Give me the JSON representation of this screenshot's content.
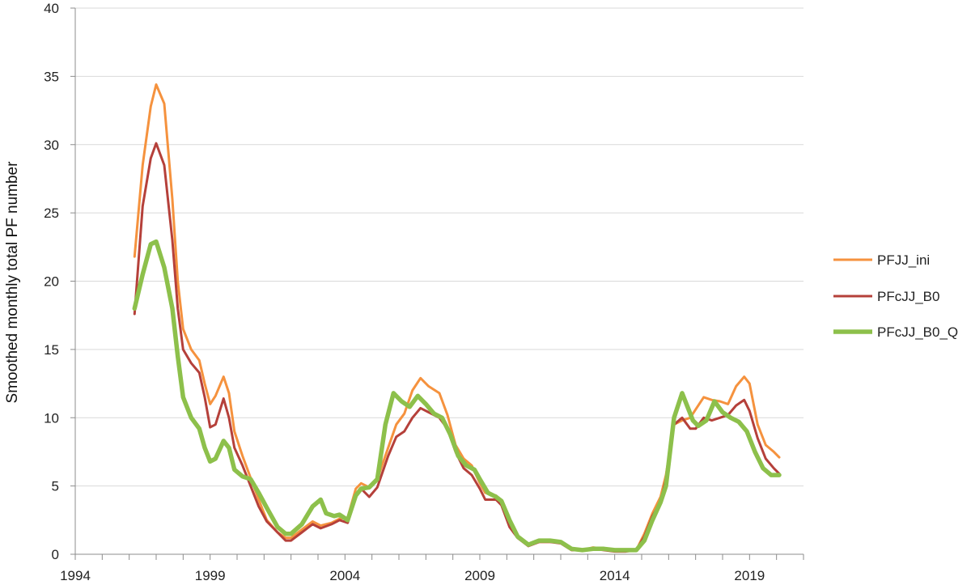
{
  "chart_data": {
    "type": "line",
    "title": "",
    "xlabel": "",
    "ylabel": "Smoothed monthly total PF number",
    "xlim": [
      1994,
      2021
    ],
    "ylim": [
      0,
      40
    ],
    "x_ticks": [
      "1994",
      "1999",
      "2004",
      "2009",
      "2014",
      "2019"
    ],
    "y_ticks": [
      "0",
      "5",
      "10",
      "15",
      "20",
      "25",
      "30",
      "35",
      "40"
    ],
    "grid": "horizontal",
    "legend_position": "right",
    "series": [
      {
        "name": "PFJJ_ini",
        "color": "#F5923E",
        "points": [
          [
            1996.2,
            21.8
          ],
          [
            1996.5,
            28.5
          ],
          [
            1996.8,
            32.8
          ],
          [
            1997.0,
            34.4
          ],
          [
            1997.3,
            33.0
          ],
          [
            1997.6,
            26.0
          ],
          [
            1997.8,
            20.0
          ],
          [
            1998.0,
            16.5
          ],
          [
            1998.3,
            15.0
          ],
          [
            1998.6,
            14.2
          ],
          [
            1998.8,
            12.5
          ],
          [
            1999.0,
            11.0
          ],
          [
            1999.2,
            11.6
          ],
          [
            1999.5,
            13.0
          ],
          [
            1999.7,
            11.8
          ],
          [
            1999.9,
            9.0
          ],
          [
            2000.2,
            7.2
          ],
          [
            2000.5,
            5.6
          ],
          [
            2000.8,
            4.0
          ],
          [
            2001.1,
            2.5
          ],
          [
            2001.5,
            1.6
          ],
          [
            2001.8,
            1.2
          ],
          [
            2002.0,
            1.2
          ],
          [
            2002.4,
            1.8
          ],
          [
            2002.8,
            2.4
          ],
          [
            2003.1,
            2.1
          ],
          [
            2003.5,
            2.3
          ],
          [
            2003.8,
            2.6
          ],
          [
            2004.1,
            2.7
          ],
          [
            2004.4,
            4.8
          ],
          [
            2004.6,
            5.2
          ],
          [
            2004.9,
            4.9
          ],
          [
            2005.2,
            5.5
          ],
          [
            2005.6,
            7.8
          ],
          [
            2005.9,
            9.5
          ],
          [
            2006.2,
            10.3
          ],
          [
            2006.5,
            12.0
          ],
          [
            2006.8,
            12.9
          ],
          [
            2007.1,
            12.3
          ],
          [
            2007.5,
            11.8
          ],
          [
            2007.8,
            10.2
          ],
          [
            2008.1,
            8.0
          ],
          [
            2008.4,
            7.0
          ],
          [
            2008.7,
            6.5
          ],
          [
            2009.0,
            5.2
          ],
          [
            2009.2,
            4.5
          ],
          [
            2009.6,
            4.3
          ],
          [
            2009.8,
            3.8
          ],
          [
            2010.1,
            2.2
          ],
          [
            2010.4,
            1.3
          ],
          [
            2010.8,
            0.7
          ],
          [
            2011.2,
            0.9
          ],
          [
            2011.6,
            0.9
          ],
          [
            2012.0,
            0.9
          ],
          [
            2012.4,
            0.4
          ],
          [
            2012.8,
            0.3
          ],
          [
            2013.2,
            0.5
          ],
          [
            2013.6,
            0.4
          ],
          [
            2014.0,
            0.3
          ],
          [
            2014.4,
            0.3
          ],
          [
            2014.8,
            0.3
          ],
          [
            2015.1,
            1.5
          ],
          [
            2015.4,
            3.0
          ],
          [
            2015.7,
            4.2
          ],
          [
            2015.9,
            5.8
          ],
          [
            2016.2,
            9.5
          ],
          [
            2016.5,
            9.8
          ],
          [
            2016.8,
            10.0
          ],
          [
            2017.0,
            10.6
          ],
          [
            2017.3,
            11.5
          ],
          [
            2017.6,
            11.3
          ],
          [
            2017.9,
            11.2
          ],
          [
            2018.2,
            11.0
          ],
          [
            2018.5,
            12.3
          ],
          [
            2018.8,
            13.0
          ],
          [
            2019.0,
            12.5
          ],
          [
            2019.3,
            9.5
          ],
          [
            2019.6,
            8.0
          ],
          [
            2019.9,
            7.5
          ],
          [
            2020.1,
            7.1
          ]
        ]
      },
      {
        "name": "PFcJJ_B0",
        "color": "#B5403A",
        "points": [
          [
            1996.2,
            17.6
          ],
          [
            1996.5,
            25.5
          ],
          [
            1996.8,
            29.0
          ],
          [
            1997.0,
            30.1
          ],
          [
            1997.3,
            28.5
          ],
          [
            1997.6,
            23.0
          ],
          [
            1997.8,
            18.0
          ],
          [
            1998.0,
            15.0
          ],
          [
            1998.3,
            14.0
          ],
          [
            1998.6,
            13.3
          ],
          [
            1998.8,
            11.5
          ],
          [
            1999.0,
            9.3
          ],
          [
            1999.2,
            9.5
          ],
          [
            1999.5,
            11.4
          ],
          [
            1999.7,
            10.0
          ],
          [
            1999.9,
            7.8
          ],
          [
            2000.2,
            6.5
          ],
          [
            2000.5,
            5.0
          ],
          [
            2000.8,
            3.5
          ],
          [
            2001.1,
            2.4
          ],
          [
            2001.5,
            1.6
          ],
          [
            2001.8,
            1.0
          ],
          [
            2002.0,
            1.0
          ],
          [
            2002.4,
            1.6
          ],
          [
            2002.8,
            2.2
          ],
          [
            2003.1,
            1.9
          ],
          [
            2003.5,
            2.2
          ],
          [
            2003.8,
            2.5
          ],
          [
            2004.1,
            2.3
          ],
          [
            2004.4,
            4.4
          ],
          [
            2004.6,
            4.8
          ],
          [
            2004.9,
            4.2
          ],
          [
            2005.2,
            4.9
          ],
          [
            2005.6,
            7.2
          ],
          [
            2005.9,
            8.6
          ],
          [
            2006.2,
            9.0
          ],
          [
            2006.5,
            10.0
          ],
          [
            2006.8,
            10.7
          ],
          [
            2007.1,
            10.4
          ],
          [
            2007.5,
            10.0
          ],
          [
            2007.8,
            9.2
          ],
          [
            2008.1,
            7.5
          ],
          [
            2008.4,
            6.3
          ],
          [
            2008.7,
            5.8
          ],
          [
            2009.0,
            4.8
          ],
          [
            2009.2,
            4.0
          ],
          [
            2009.6,
            4.0
          ],
          [
            2009.8,
            3.6
          ],
          [
            2010.1,
            2.0
          ],
          [
            2010.4,
            1.2
          ],
          [
            2010.8,
            0.6
          ],
          [
            2011.2,
            0.9
          ],
          [
            2011.6,
            0.9
          ],
          [
            2012.0,
            0.8
          ],
          [
            2012.4,
            0.3
          ],
          [
            2012.8,
            0.3
          ],
          [
            2013.2,
            0.4
          ],
          [
            2013.6,
            0.3
          ],
          [
            2014.0,
            0.2
          ],
          [
            2014.4,
            0.2
          ],
          [
            2014.8,
            0.3
          ],
          [
            2015.1,
            1.3
          ],
          [
            2015.4,
            2.8
          ],
          [
            2015.7,
            3.8
          ],
          [
            2015.9,
            5.5
          ],
          [
            2016.2,
            9.5
          ],
          [
            2016.5,
            10.0
          ],
          [
            2016.8,
            9.2
          ],
          [
            2017.0,
            9.2
          ],
          [
            2017.3,
            10.0
          ],
          [
            2017.6,
            9.8
          ],
          [
            2017.9,
            10.0
          ],
          [
            2018.2,
            10.2
          ],
          [
            2018.5,
            10.9
          ],
          [
            2018.8,
            11.3
          ],
          [
            2019.0,
            10.5
          ],
          [
            2019.3,
            8.5
          ],
          [
            2019.6,
            7.0
          ],
          [
            2019.9,
            6.3
          ],
          [
            2020.1,
            5.9
          ]
        ]
      },
      {
        "name": "PFcJJ_B0_Q",
        "color": "#8DC04B",
        "points": [
          [
            1996.2,
            18.0
          ],
          [
            1996.5,
            20.5
          ],
          [
            1996.8,
            22.7
          ],
          [
            1997.0,
            22.9
          ],
          [
            1997.3,
            21.0
          ],
          [
            1997.6,
            18.0
          ],
          [
            1997.8,
            14.5
          ],
          [
            1998.0,
            11.5
          ],
          [
            1998.3,
            10.0
          ],
          [
            1998.6,
            9.2
          ],
          [
            1998.8,
            7.8
          ],
          [
            1999.0,
            6.8
          ],
          [
            1999.2,
            7.0
          ],
          [
            1999.5,
            8.3
          ],
          [
            1999.7,
            7.8
          ],
          [
            1999.9,
            6.2
          ],
          [
            2000.2,
            5.7
          ],
          [
            2000.5,
            5.5
          ],
          [
            2000.8,
            4.5
          ],
          [
            2001.1,
            3.4
          ],
          [
            2001.5,
            2.0
          ],
          [
            2001.8,
            1.5
          ],
          [
            2002.0,
            1.5
          ],
          [
            2002.4,
            2.2
          ],
          [
            2002.8,
            3.5
          ],
          [
            2003.1,
            4.0
          ],
          [
            2003.3,
            3.0
          ],
          [
            2003.6,
            2.8
          ],
          [
            2003.8,
            2.9
          ],
          [
            2004.1,
            2.5
          ],
          [
            2004.4,
            4.3
          ],
          [
            2004.6,
            4.8
          ],
          [
            2004.9,
            4.9
          ],
          [
            2005.2,
            5.5
          ],
          [
            2005.5,
            9.5
          ],
          [
            2005.8,
            11.8
          ],
          [
            2006.1,
            11.2
          ],
          [
            2006.4,
            10.8
          ],
          [
            2006.7,
            11.6
          ],
          [
            2007.0,
            11.0
          ],
          [
            2007.3,
            10.3
          ],
          [
            2007.6,
            10.0
          ],
          [
            2007.9,
            8.8
          ],
          [
            2008.2,
            7.2
          ],
          [
            2008.5,
            6.5
          ],
          [
            2008.8,
            6.2
          ],
          [
            2009.0,
            5.5
          ],
          [
            2009.3,
            4.5
          ],
          [
            2009.6,
            4.2
          ],
          [
            2009.8,
            3.9
          ],
          [
            2010.1,
            2.5
          ],
          [
            2010.4,
            1.3
          ],
          [
            2010.8,
            0.7
          ],
          [
            2011.2,
            1.0
          ],
          [
            2011.6,
            1.0
          ],
          [
            2012.0,
            0.9
          ],
          [
            2012.4,
            0.4
          ],
          [
            2012.8,
            0.3
          ],
          [
            2013.2,
            0.4
          ],
          [
            2013.6,
            0.4
          ],
          [
            2014.0,
            0.3
          ],
          [
            2014.4,
            0.3
          ],
          [
            2014.8,
            0.3
          ],
          [
            2015.1,
            1.0
          ],
          [
            2015.4,
            2.5
          ],
          [
            2015.7,
            3.8
          ],
          [
            2015.9,
            5.0
          ],
          [
            2016.2,
            10.0
          ],
          [
            2016.5,
            11.8
          ],
          [
            2016.7,
            10.8
          ],
          [
            2016.9,
            9.8
          ],
          [
            2017.1,
            9.4
          ],
          [
            2017.4,
            9.8
          ],
          [
            2017.7,
            11.2
          ],
          [
            2018.0,
            10.4
          ],
          [
            2018.3,
            10.0
          ],
          [
            2018.6,
            9.7
          ],
          [
            2018.9,
            9.0
          ],
          [
            2019.2,
            7.5
          ],
          [
            2019.5,
            6.3
          ],
          [
            2019.8,
            5.8
          ],
          [
            2020.1,
            5.8
          ]
        ]
      }
    ]
  }
}
